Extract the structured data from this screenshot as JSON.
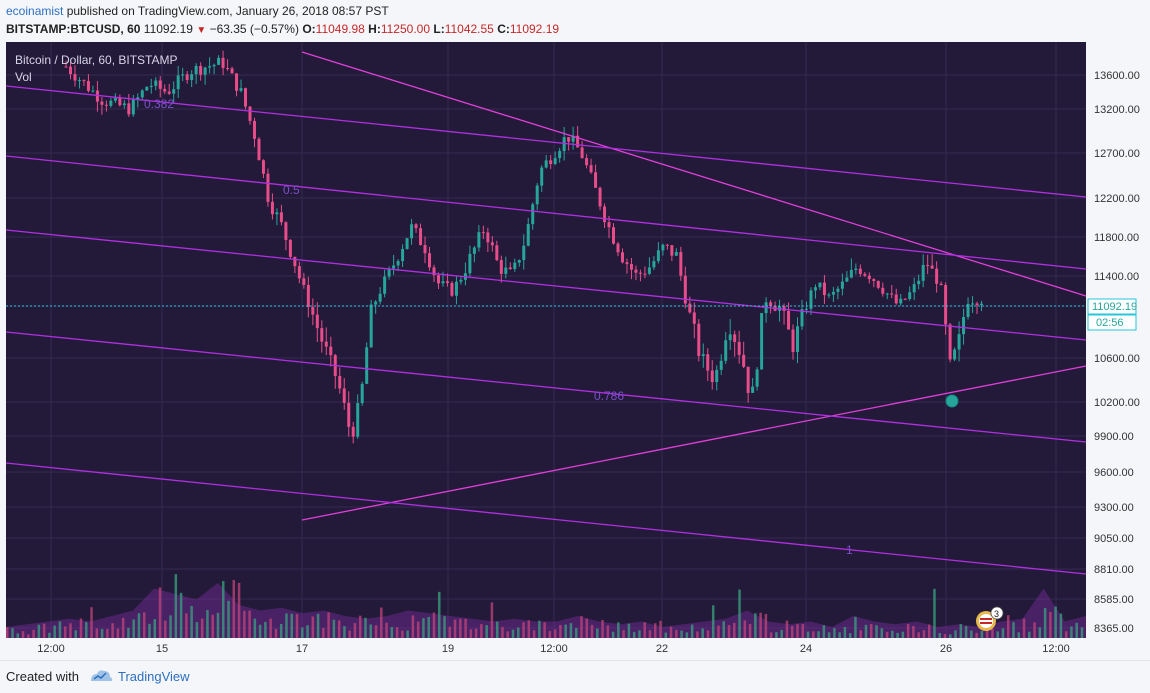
{
  "header": {
    "author": "ecoinamist",
    "published": " published on TradingView.com, January 26, 2018 08:57 PST",
    "symbol": "BITSTAMP:BTCUSD, 60",
    "last": "11092.19",
    "change": "−63.35 (−0.57%)",
    "o_label": "O:",
    "o_value": "11049.98",
    "h_label": "H:",
    "h_value": "11250.00",
    "l_label": "L:",
    "l_value": "11042.55",
    "c_label": "C:",
    "c_value": "11092.19"
  },
  "footer": {
    "created_with": "Created with",
    "brand": "TradingView"
  },
  "colors": {
    "background": "#231a3a",
    "bull": "#26a69a",
    "bear": "#e84d8a",
    "trendline": "#e040d8",
    "channel": "#b030e0",
    "price_line": "#26c6da"
  },
  "chart_data": {
    "type": "candlestick",
    "title": "Bitcoin / Dollar, 60, BITSTAMP",
    "volume_label": "Vol",
    "last_price": 11092.19,
    "last_price_label": "11092.19",
    "countdown_label": "02:56",
    "y_ticks": [
      13600,
      13200,
      12700,
      12200,
      11800,
      11400,
      11000,
      10600,
      10200,
      9900,
      9600,
      9300,
      9050,
      8810,
      8585,
      8365
    ],
    "y_tick_labels": [
      "13600.00",
      "13200.00",
      "12700.00",
      "12200.00",
      "11800.00",
      "11400.00",
      "",
      "10600.00",
      "10200.00",
      "9900.00",
      "9600.00",
      "9300.00",
      "9050.00",
      "8810.00",
      "8585.00",
      "8365.00"
    ],
    "x_tick_labels": [
      "12:00",
      "15",
      "17",
      "19",
      "12:00",
      "22",
      "24",
      "26",
      "12:00"
    ],
    "fib_labels": [
      "0.382",
      "0.5",
      "0.786",
      "1"
    ],
    "price_path": [
      {
        "t": 0,
        "p": 13700
      },
      {
        "t": 0.04,
        "p": 13300
      },
      {
        "t": 0.07,
        "p": 13200
      },
      {
        "t": 0.09,
        "p": 13500
      },
      {
        "t": 0.11,
        "p": 13400
      },
      {
        "t": 0.135,
        "p": 13650
      },
      {
        "t": 0.17,
        "p": 13750
      },
      {
        "t": 0.19,
        "p": 13400
      },
      {
        "t": 0.205,
        "p": 12900
      },
      {
        "t": 0.22,
        "p": 12200
      },
      {
        "t": 0.235,
        "p": 11900
      },
      {
        "t": 0.25,
        "p": 11500
      },
      {
        "t": 0.265,
        "p": 11000
      },
      {
        "t": 0.28,
        "p": 10700
      },
      {
        "t": 0.295,
        "p": 10400
      },
      {
        "t": 0.31,
        "p": 9900
      },
      {
        "t": 0.32,
        "p": 10200
      },
      {
        "t": 0.33,
        "p": 10900
      },
      {
        "t": 0.345,
        "p": 11300
      },
      {
        "t": 0.36,
        "p": 11600
      },
      {
        "t": 0.375,
        "p": 11900
      },
      {
        "t": 0.39,
        "p": 11700
      },
      {
        "t": 0.405,
        "p": 11300
      },
      {
        "t": 0.42,
        "p": 11200
      },
      {
        "t": 0.44,
        "p": 11600
      },
      {
        "t": 0.455,
        "p": 11900
      },
      {
        "t": 0.47,
        "p": 11500
      },
      {
        "t": 0.485,
        "p": 11400
      },
      {
        "t": 0.5,
        "p": 11800
      },
      {
        "t": 0.515,
        "p": 12500
      },
      {
        "t": 0.53,
        "p": 12700
      },
      {
        "t": 0.545,
        "p": 12900
      },
      {
        "t": 0.56,
        "p": 12700
      },
      {
        "t": 0.575,
        "p": 12300
      },
      {
        "t": 0.59,
        "p": 11900
      },
      {
        "t": 0.605,
        "p": 11600
      },
      {
        "t": 0.62,
        "p": 11400
      },
      {
        "t": 0.635,
        "p": 11500
      },
      {
        "t": 0.65,
        "p": 11700
      },
      {
        "t": 0.665,
        "p": 11600
      },
      {
        "t": 0.675,
        "p": 11000
      },
      {
        "t": 0.69,
        "p": 10600
      },
      {
        "t": 0.705,
        "p": 10400
      },
      {
        "t": 0.72,
        "p": 10900
      },
      {
        "t": 0.735,
        "p": 10600
      },
      {
        "t": 0.745,
        "p": 10200
      },
      {
        "t": 0.76,
        "p": 11100
      },
      {
        "t": 0.775,
        "p": 11000
      },
      {
        "t": 0.79,
        "p": 10700
      },
      {
        "t": 0.8,
        "p": 10900
      },
      {
        "t": 0.815,
        "p": 11300
      },
      {
        "t": 0.83,
        "p": 11100
      },
      {
        "t": 0.845,
        "p": 11300
      },
      {
        "t": 0.86,
        "p": 11500
      },
      {
        "t": 0.875,
        "p": 11400
      },
      {
        "t": 0.89,
        "p": 11200
      },
      {
        "t": 0.905,
        "p": 11000
      },
      {
        "t": 0.92,
        "p": 11200
      },
      {
        "t": 0.935,
        "p": 11550
      },
      {
        "t": 0.95,
        "p": 11300
      },
      {
        "t": 0.96,
        "p": 10500
      },
      {
        "t": 0.97,
        "p": 10700
      },
      {
        "t": 0.98,
        "p": 11092
      }
    ],
    "volume_profile": [
      0.2,
      0.25,
      0.3,
      0.35,
      0.3,
      0.4,
      0.5,
      0.9,
      0.8,
      0.7,
      1.0,
      0.6,
      0.5,
      0.55,
      0.45,
      0.5,
      0.4,
      0.35,
      0.4,
      0.5,
      0.45,
      0.4,
      0.35,
      0.3,
      0.35,
      0.3,
      0.3,
      0.4,
      0.3,
      0.25,
      0.3,
      0.2,
      0.25,
      0.3,
      0.35,
      0.5,
      0.3,
      0.25,
      0.3,
      0.2,
      0.4,
      0.3,
      0.25,
      0.3,
      0.2,
      0.25,
      0.2,
      0.3,
      0.35,
      0.9,
      0.3,
      0.4
    ]
  }
}
